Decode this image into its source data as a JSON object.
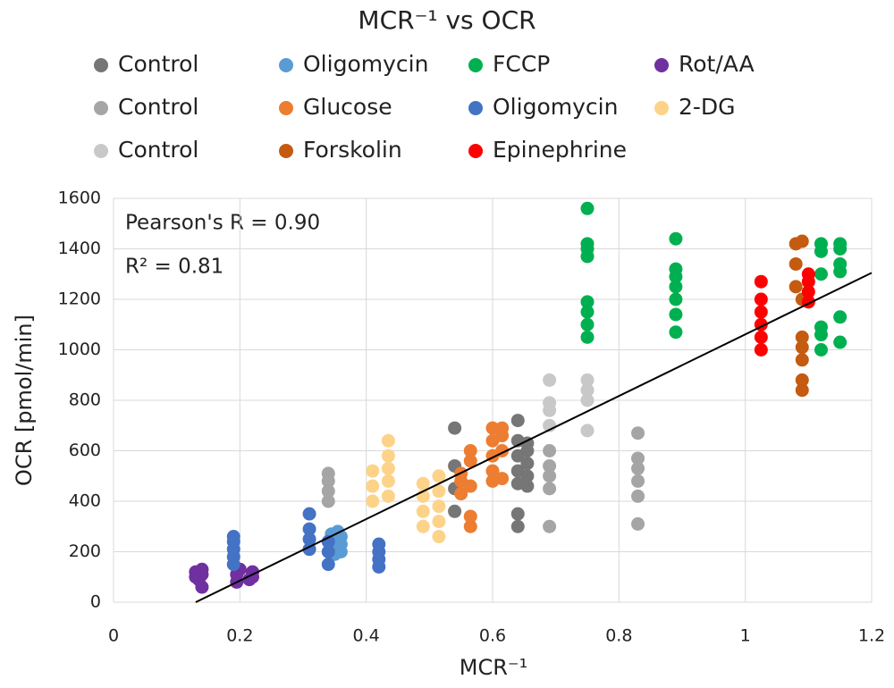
{
  "chart_data": {
    "type": "scatter",
    "title": "MCR⁻¹ vs OCR",
    "x_label": "MCR⁻¹",
    "y_label": "OCR [pmol/min]",
    "annotations": [
      "Pearson's R = 0.90",
      "R² = 0.81"
    ],
    "xlim": [
      0,
      1.2
    ],
    "xticks": [
      0,
      0.2,
      0.4,
      0.6,
      0.8,
      1,
      1.2
    ],
    "ylim": [
      0,
      1600
    ],
    "yticks": [
      0,
      200,
      400,
      600,
      800,
      1000,
      1200,
      1400,
      1600
    ],
    "grid": true,
    "trendline": {
      "color": "#000000",
      "x": [
        0.13,
        1.2
      ],
      "values": [
        0,
        1305
      ]
    },
    "series": [
      {
        "name": "Control",
        "color": "#767676",
        "x": [
          0.54,
          0.54,
          0.54,
          0.54,
          0.64,
          0.64,
          0.64,
          0.64,
          0.64,
          0.64,
          0.64,
          0.655,
          0.655,
          0.655,
          0.655,
          0.655
        ],
        "values": [
          360,
          450,
          540,
          690,
          300,
          350,
          470,
          520,
          580,
          640,
          720,
          460,
          500,
          550,
          600,
          630
        ]
      },
      {
        "name": "Oligomycin",
        "color": "#5b9bd5",
        "x": [
          0.35,
          0.35,
          0.35,
          0.355,
          0.36,
          0.36,
          0.36,
          0.345
        ],
        "values": [
          190,
          220,
          250,
          280,
          200,
          230,
          260,
          270
        ]
      },
      {
        "name": "FCCP",
        "color": "#00b050",
        "x": [
          0.75,
          0.75,
          0.75,
          0.75,
          0.75,
          0.75,
          0.75,
          0.75,
          0.89,
          0.89,
          0.89,
          0.89,
          0.89,
          0.89,
          0.89,
          1.12,
          1.12,
          1.12,
          1.12,
          1.12,
          1.12,
          1.15,
          1.15,
          1.15,
          1.15,
          1.15,
          1.15
        ],
        "values": [
          1050,
          1100,
          1150,
          1190,
          1370,
          1400,
          1420,
          1560,
          1070,
          1140,
          1200,
          1250,
          1290,
          1320,
          1440,
          1000,
          1060,
          1090,
          1300,
          1390,
          1420,
          1030,
          1130,
          1310,
          1340,
          1400,
          1420
        ]
      },
      {
        "name": "Rot/AA",
        "color": "#7030a0",
        "x": [
          0.13,
          0.13,
          0.135,
          0.14,
          0.14,
          0.14,
          0.195,
          0.195,
          0.2,
          0.215,
          0.22,
          0.22
        ],
        "values": [
          100,
          120,
          90,
          60,
          110,
          130,
          80,
          110,
          130,
          90,
          120,
          100
        ]
      },
      {
        "name": "Control",
        "color": "#a5a5a5",
        "x": [
          0.34,
          0.34,
          0.34,
          0.34,
          0.69,
          0.69,
          0.69,
          0.69,
          0.69,
          0.83,
          0.83,
          0.83,
          0.83,
          0.83,
          0.83
        ],
        "values": [
          400,
          440,
          480,
          510,
          300,
          450,
          500,
          540,
          600,
          310,
          420,
          480,
          530,
          570,
          670
        ]
      },
      {
        "name": "Glucose",
        "color": "#ed7d31",
        "x": [
          0.55,
          0.55,
          0.55,
          0.565,
          0.565,
          0.565,
          0.565,
          0.565,
          0.6,
          0.6,
          0.6,
          0.6,
          0.6,
          0.615,
          0.615,
          0.615,
          0.615
        ],
        "values": [
          430,
          480,
          510,
          300,
          340,
          460,
          560,
          600,
          480,
          520,
          580,
          640,
          690,
          490,
          600,
          660,
          690
        ]
      },
      {
        "name": "Oligomycin",
        "color": "#4472c4",
        "x": [
          0.19,
          0.19,
          0.19,
          0.19,
          0.19,
          0.31,
          0.31,
          0.31,
          0.31,
          0.34,
          0.34,
          0.34,
          0.42,
          0.42,
          0.42,
          0.42
        ],
        "values": [
          150,
          180,
          210,
          240,
          260,
          210,
          250,
          290,
          350,
          150,
          200,
          240,
          140,
          170,
          200,
          230
        ]
      },
      {
        "name": "2-DG",
        "color": "#fdd38a",
        "x": [
          0.41,
          0.41,
          0.41,
          0.435,
          0.435,
          0.435,
          0.435,
          0.435,
          0.49,
          0.49,
          0.49,
          0.49,
          0.515,
          0.515,
          0.515,
          0.515,
          0.515
        ],
        "values": [
          400,
          460,
          520,
          420,
          480,
          530,
          580,
          640,
          300,
          360,
          420,
          470,
          260,
          320,
          380,
          440,
          500
        ]
      },
      {
        "name": "Control",
        "color": "#c8c8c8",
        "x": [
          0.69,
          0.69,
          0.69,
          0.69,
          0.75,
          0.75,
          0.75,
          0.75
        ],
        "values": [
          700,
          760,
          790,
          880,
          680,
          800,
          840,
          880
        ]
      },
      {
        "name": "Forskolin",
        "color": "#c55a11",
        "x": [
          1.08,
          1.08,
          1.08,
          1.09,
          1.09,
          1.09,
          1.09,
          1.09,
          1.09,
          1.09
        ],
        "values": [
          1250,
          1340,
          1420,
          840,
          880,
          960,
          1010,
          1050,
          1200,
          1430
        ]
      },
      {
        "name": "Epinephrine",
        "color": "#ff0000",
        "x": [
          1.025,
          1.025,
          1.025,
          1.025,
          1.025,
          1.025,
          1.1,
          1.1,
          1.1,
          1.1
        ],
        "values": [
          1000,
          1050,
          1100,
          1150,
          1200,
          1270,
          1190,
          1230,
          1270,
          1300
        ]
      }
    ]
  }
}
